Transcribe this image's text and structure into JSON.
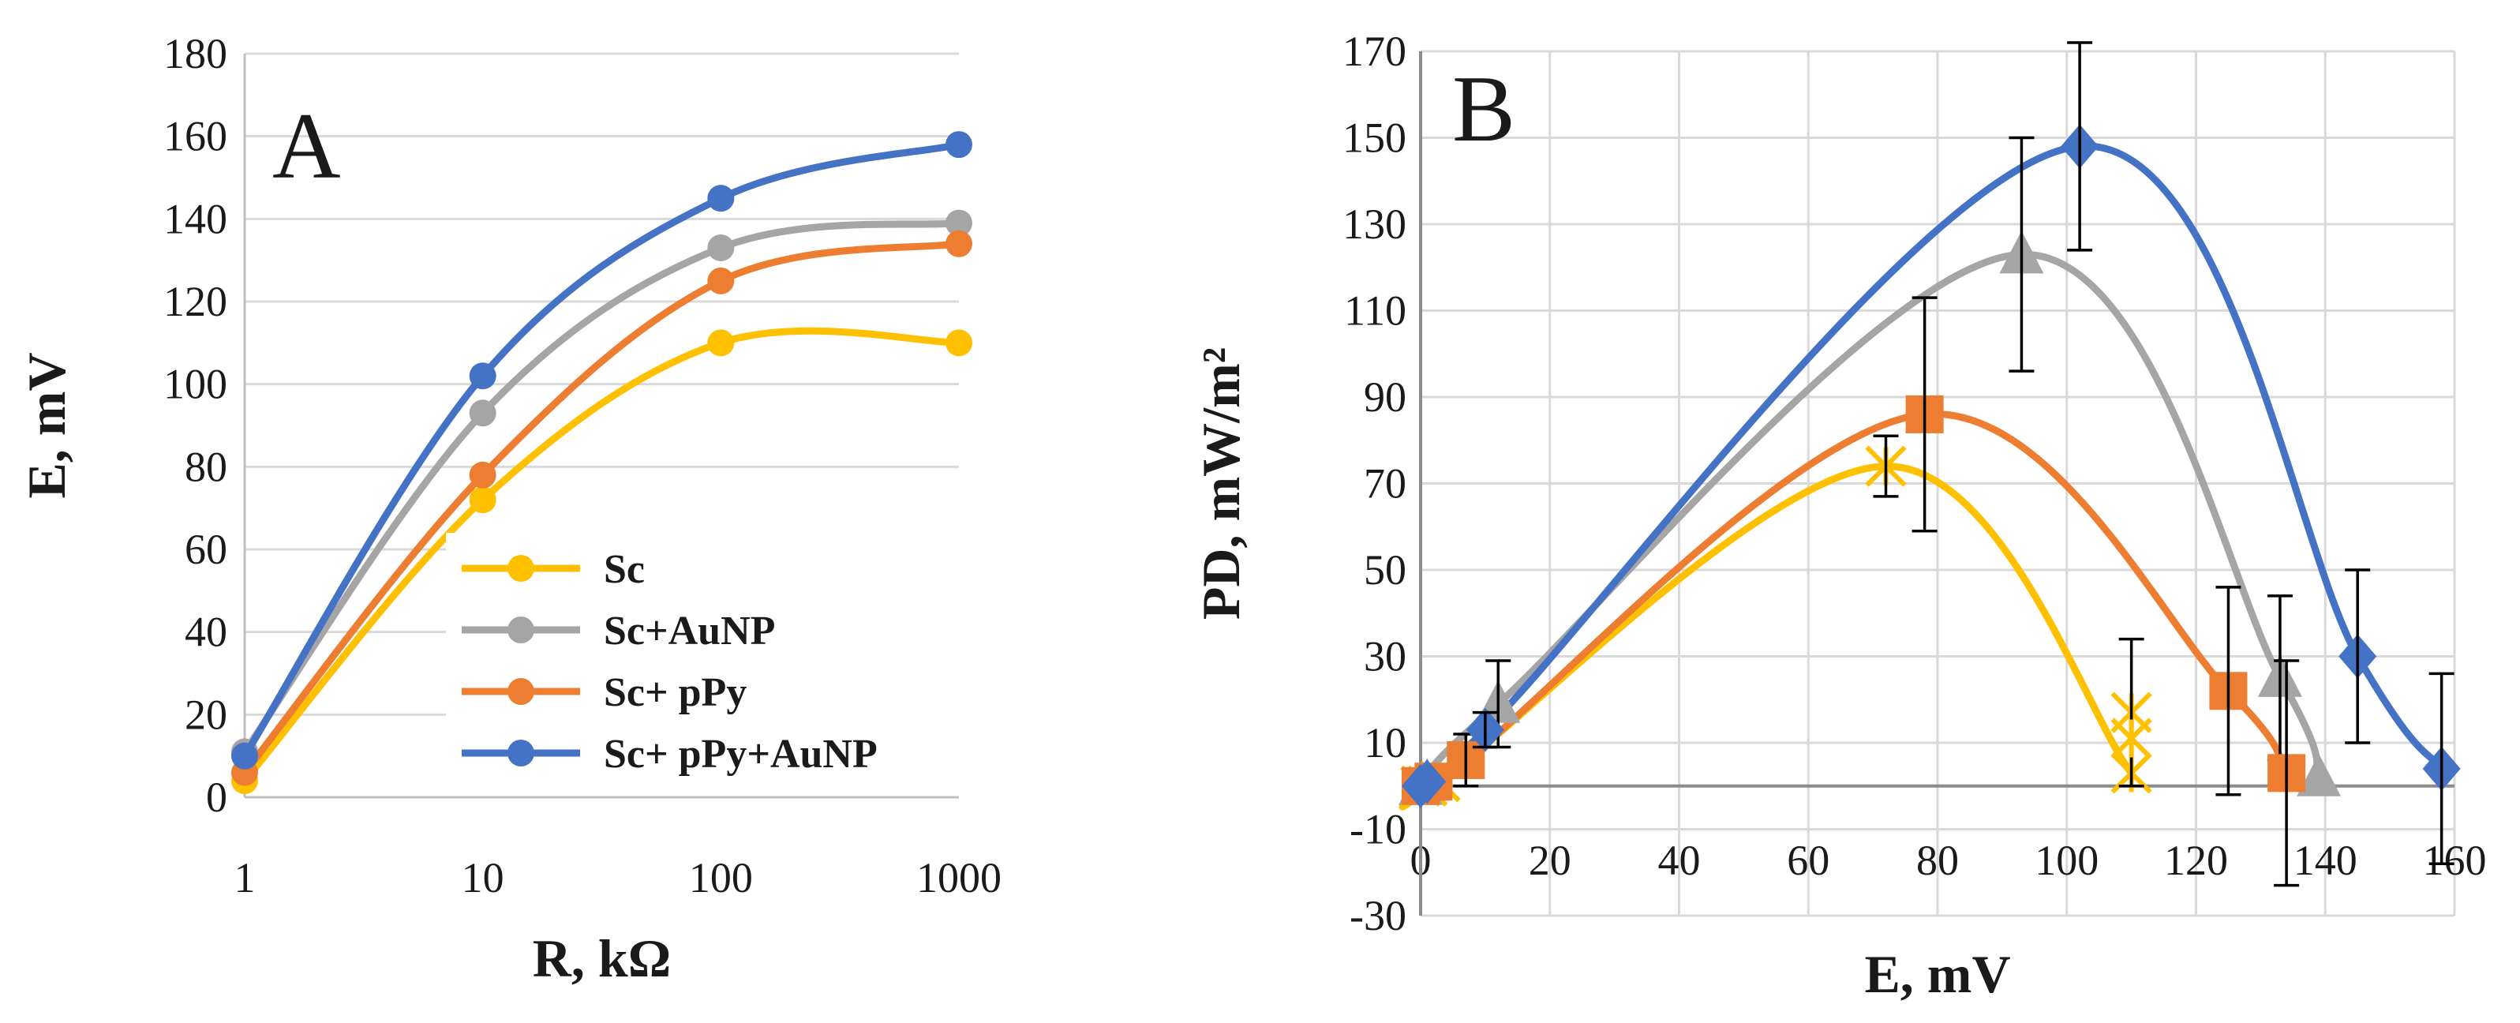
{
  "chart_data": [
    {
      "panel": "A",
      "type": "line",
      "xscale": "log",
      "xlabel": "R, kΩ",
      "ylabel": "E, mV",
      "ylim": [
        0,
        180
      ],
      "yticks": [
        0,
        20,
        40,
        60,
        80,
        100,
        120,
        140,
        160,
        180
      ],
      "x": [
        1,
        10,
        100,
        1000
      ],
      "xtick_labels": [
        "1",
        "10",
        "100",
        "1000"
      ],
      "legend_position": "bottom-right",
      "series": [
        {
          "name": "Sc",
          "color": "#FFC000",
          "values": [
            4,
            72,
            110,
            110
          ]
        },
        {
          "name": "Sc+AuNP",
          "color": "#A5A5A5",
          "values": [
            11,
            93,
            133,
            139
          ]
        },
        {
          "name": "Sc+ pPy",
          "color": "#ED7D31",
          "values": [
            6,
            78,
            125,
            134
          ]
        },
        {
          "name": "Sc+ pPy+AuNP",
          "color": "#4472C4",
          "values": [
            10,
            102,
            145,
            158
          ]
        }
      ]
    },
    {
      "panel": "B",
      "type": "line",
      "xlabel": "E, mV",
      "ylabel": "PD, mW/m²",
      "xlim": [
        0,
        160
      ],
      "ylim": [
        -30,
        170
      ],
      "xticks": [
        0,
        20,
        40,
        60,
        80,
        100,
        120,
        140,
        160
      ],
      "yticks": [
        -30,
        -10,
        10,
        30,
        50,
        70,
        90,
        110,
        130,
        150,
        170
      ],
      "series": [
        {
          "name": "Sc",
          "color": "#FFC000",
          "marker": "star",
          "points": [
            [
              0,
              0
            ],
            [
              1,
              0
            ],
            [
              3,
              1
            ],
            [
              72,
              74
            ],
            [
              110,
              3
            ],
            [
              110,
              17
            ],
            [
              110,
              11
            ]
          ],
          "error": [
            null,
            null,
            null,
            7,
            null,
            17,
            null
          ]
        },
        {
          "name": "Sc+AuNP",
          "color": "#A5A5A5",
          "marker": "triangle",
          "points": [
            [
              0,
              0
            ],
            [
              1,
              1
            ],
            [
              12,
              19
            ],
            [
              93,
              123
            ],
            [
              133,
              25
            ],
            [
              139,
              2
            ]
          ],
          "error": [
            null,
            null,
            10,
            27,
            19,
            null
          ]
        },
        {
          "name": "Sc+ pPy",
          "color": "#ED7D31",
          "marker": "square",
          "points": [
            [
              0,
              0
            ],
            [
              2,
              1
            ],
            [
              7,
              6
            ],
            [
              78,
              86
            ],
            [
              125,
              22
            ],
            [
              134,
              3
            ]
          ],
          "error": [
            null,
            null,
            6,
            27,
            24,
            26
          ]
        },
        {
          "name": "Sc+ pPy+AuNP",
          "color": "#4472C4",
          "marker": "diamond",
          "points": [
            [
              0,
              0
            ],
            [
              1,
              1
            ],
            [
              10,
              13
            ],
            [
              102,
              148
            ],
            [
              145,
              30
            ],
            [
              158,
              4
            ]
          ],
          "error": [
            null,
            null,
            4,
            24,
            20,
            22
          ]
        }
      ]
    }
  ]
}
